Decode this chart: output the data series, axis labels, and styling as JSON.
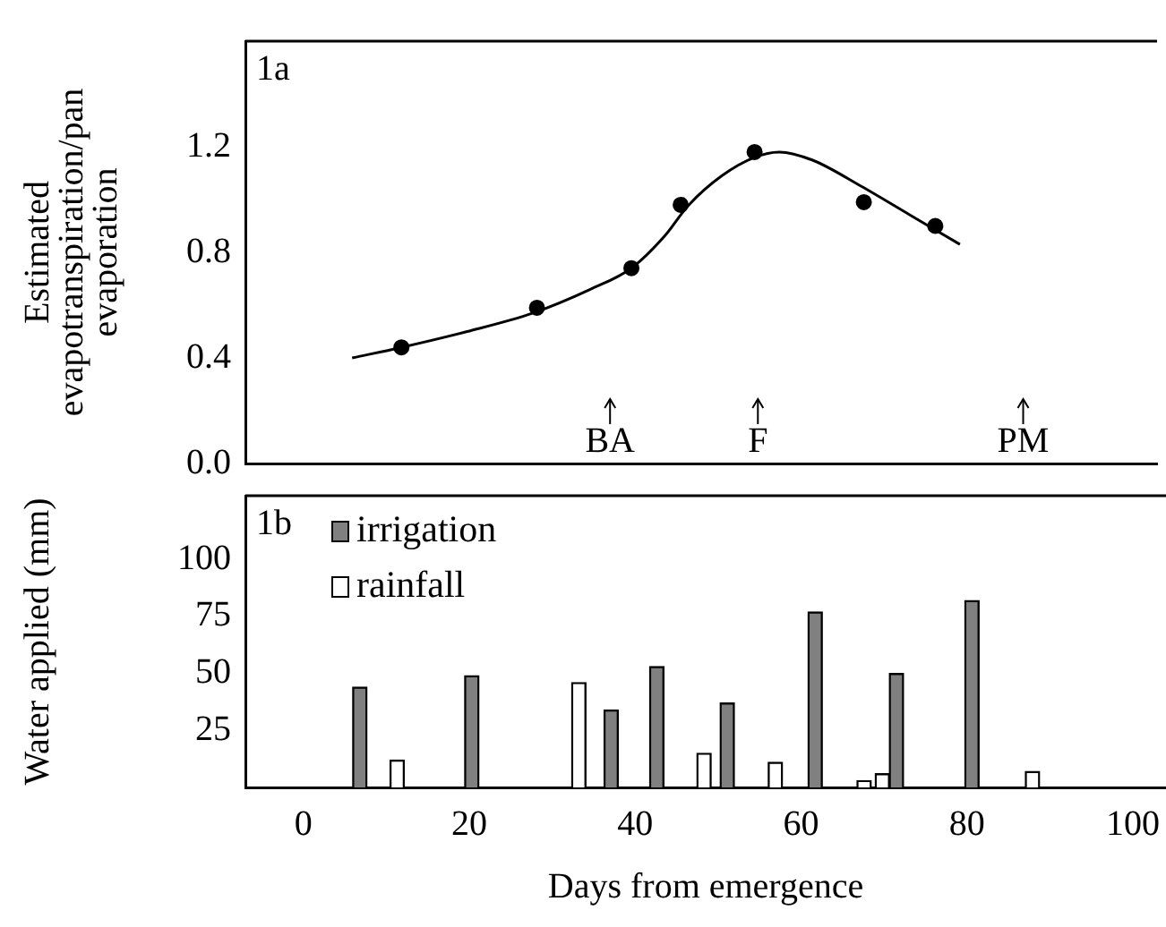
{
  "chart_data": [
    {
      "type": "scatter",
      "ylabel": "Estimated evapotranspiration/pan evaporation",
      "xlim": [
        -7,
        104
      ],
      "ylim": [
        0,
        1.6
      ],
      "yticks": [
        {
          "value": 0,
          "label": "0.0"
        },
        0.4,
        0.8,
        1.2
      ],
      "tick_labels": "y",
      "grid": false,
      "legend": false,
      "marker": "circle",
      "annotations": [
        "1a"
      ],
      "ref_lines": [
        {
          "axis": "x",
          "value": 37.4,
          "label": "BA"
        },
        {
          "axis": "x",
          "value": 55.4,
          "label": "F"
        },
        {
          "axis": "x",
          "value": 87.7,
          "label": "PM"
        }
      ],
      "series": [
        {
          "color": "#000000",
          "x": [
            12,
            28.5,
            40,
            46,
            55,
            68.3,
            77
          ],
          "values": [
            0.44,
            0.59,
            0.74,
            0.98,
            1.18,
            0.99,
            0.9
          ]
        },
        {
          "type": "line",
          "marker": "none",
          "line_style": "solid",
          "color": "#000000",
          "x": [
            6,
            12,
            20,
            28,
            35,
            40,
            44,
            47,
            51,
            55,
            58,
            62,
            68,
            74,
            80
          ],
          "values": [
            0.4,
            0.44,
            0.5,
            0.57,
            0.66,
            0.74,
            0.86,
            0.98,
            1.09,
            1.16,
            1.18,
            1.15,
            1.05,
            0.94,
            0.83
          ]
        }
      ]
    },
    {
      "type": "bar",
      "xlabel": "Days from emergence",
      "ylabel": "Water applied (mm)",
      "xlim": [
        -7,
        104
      ],
      "xticks": [
        0,
        20,
        40,
        60,
        80,
        100
      ],
      "ylim": [
        0,
        128
      ],
      "yticks": [
        25,
        50,
        75,
        100
      ],
      "grid": false,
      "legend": "top left",
      "annotations": [
        "1b"
      ],
      "series": [
        {
          "name": "irrigation",
          "color": "#808080",
          "x": [
            6.8,
            20.3,
            37.1,
            42.6,
            51.1,
            61.7,
            71.5,
            80.6
          ],
          "values": [
            44,
            49,
            34,
            53,
            37,
            77,
            50,
            82
          ]
        },
        {
          "name": "rainfall",
          "color": "#ffffff",
          "x": [
            11.3,
            33.2,
            48.3,
            56.9,
            67.6,
            69.8,
            87.9
          ],
          "values": [
            12,
            46,
            15,
            11,
            3,
            6,
            7
          ]
        }
      ]
    }
  ]
}
